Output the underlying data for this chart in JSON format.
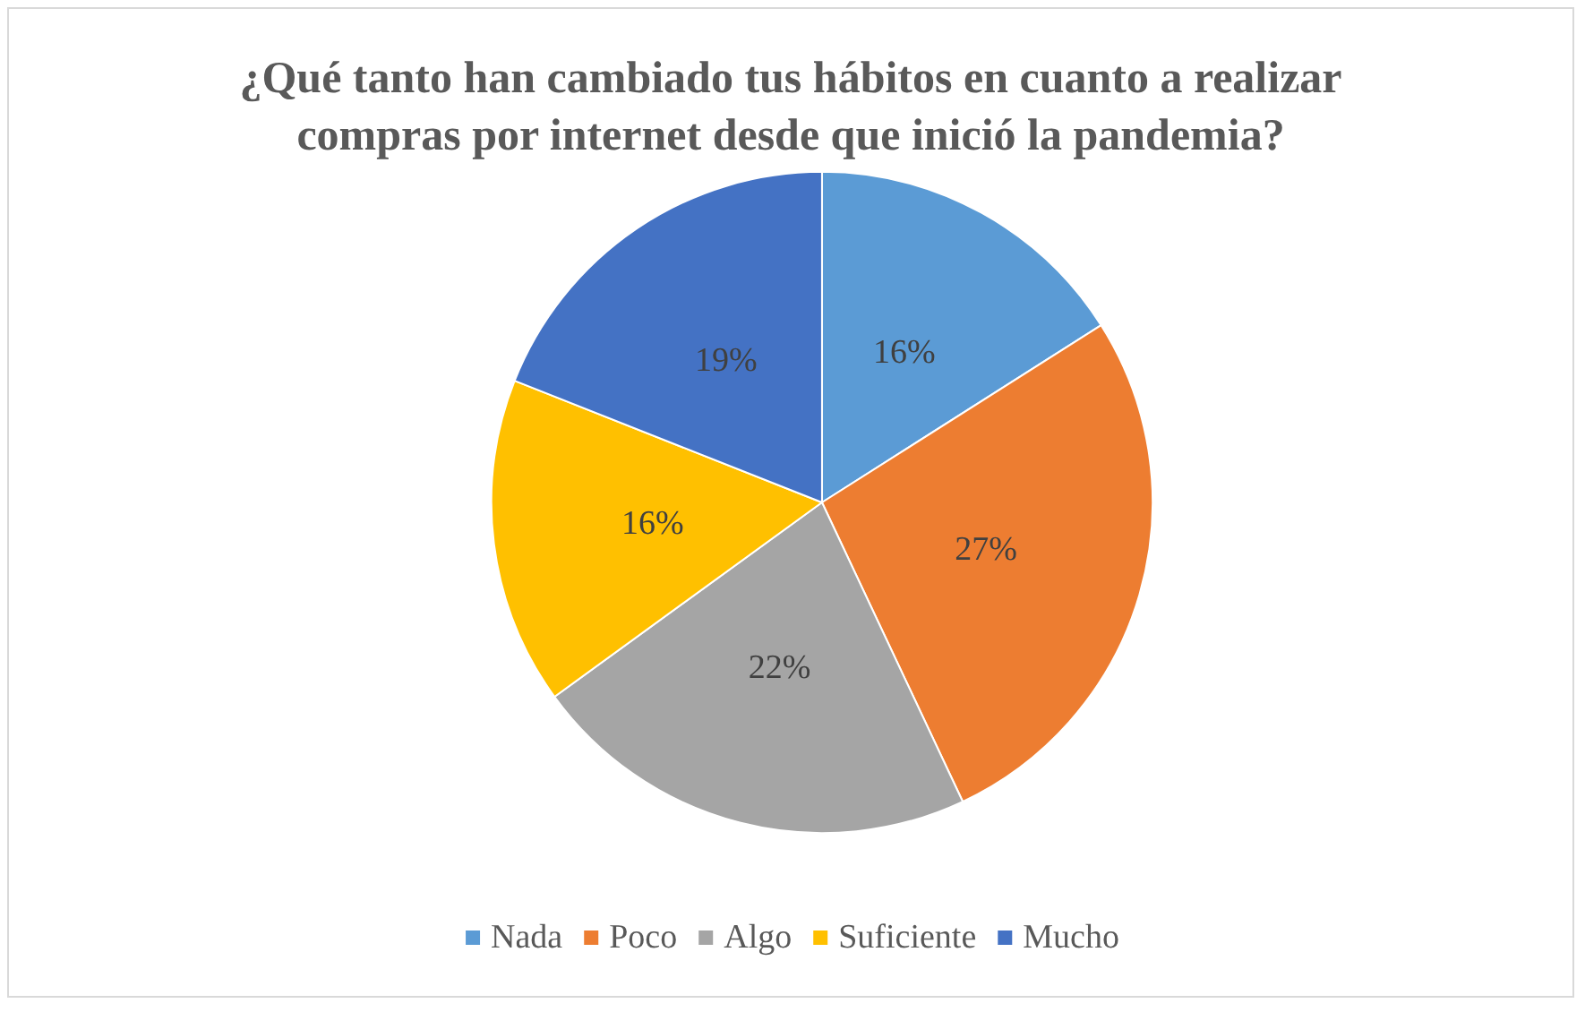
{
  "chart_data": {
    "type": "pie",
    "title": "¿Qué tanto han cambiado tus hábitos en cuanto a realizar\ncompras por internet desde que inició la pandemia?",
    "categories": [
      "Nada",
      "Poco",
      "Algo",
      "Suficiente",
      "Mucho"
    ],
    "values": [
      16,
      27,
      22,
      16,
      19
    ],
    "value_labels": [
      "16%",
      "27%",
      "22%",
      "16%",
      "19%"
    ],
    "colors": [
      "#5b9bd5",
      "#ed7d31",
      "#a5a5a5",
      "#ffc000",
      "#4472c4"
    ],
    "legend": "bottom"
  }
}
